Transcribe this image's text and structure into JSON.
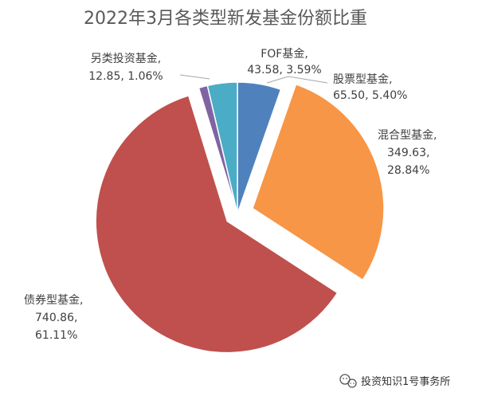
{
  "chart_data": {
    "type": "pie",
    "title": "2022年3月各类型新发基金份额比重",
    "unit_note": "",
    "slices": [
      {
        "name": "FOF基金",
        "value": 43.58,
        "value_label": "43.58",
        "percent": 3.59,
        "percent_label": "3.59%",
        "color": "#4f81bd",
        "exploded": false
      },
      {
        "name": "股票型基金",
        "value": 65.5,
        "value_label": "65.50",
        "percent": 5.4,
        "percent_label": "5.40%",
        "color": "#4f81bd",
        "exploded": false
      },
      {
        "name": "混合型基金",
        "value": 349.63,
        "value_label": "349.63",
        "percent": 28.84,
        "percent_label": "28.84%",
        "color": "#f79646",
        "exploded": true
      },
      {
        "name": "债券型基金",
        "value": 740.86,
        "value_label": "740.86",
        "percent": 61.11,
        "percent_label": "61.11%",
        "color": "#c0504d",
        "exploded": true
      },
      {
        "name": "另类投资基金",
        "value": 12.85,
        "value_label": "12.85",
        "percent": 1.06,
        "percent_label": "1.06%",
        "color": "#8064a2",
        "exploded": false
      },
      {
        "name": "",
        "value": null,
        "percent": null,
        "color": "#4bacc6",
        "exploded": false
      }
    ],
    "visible_slice_colors": [
      "#4f81bd",
      "#f79646",
      "#c0504d",
      "#8064a2",
      "#4bacc6"
    ]
  },
  "watermark": {
    "icon": "wechat-icon",
    "text": "投资知识1号事务所"
  }
}
